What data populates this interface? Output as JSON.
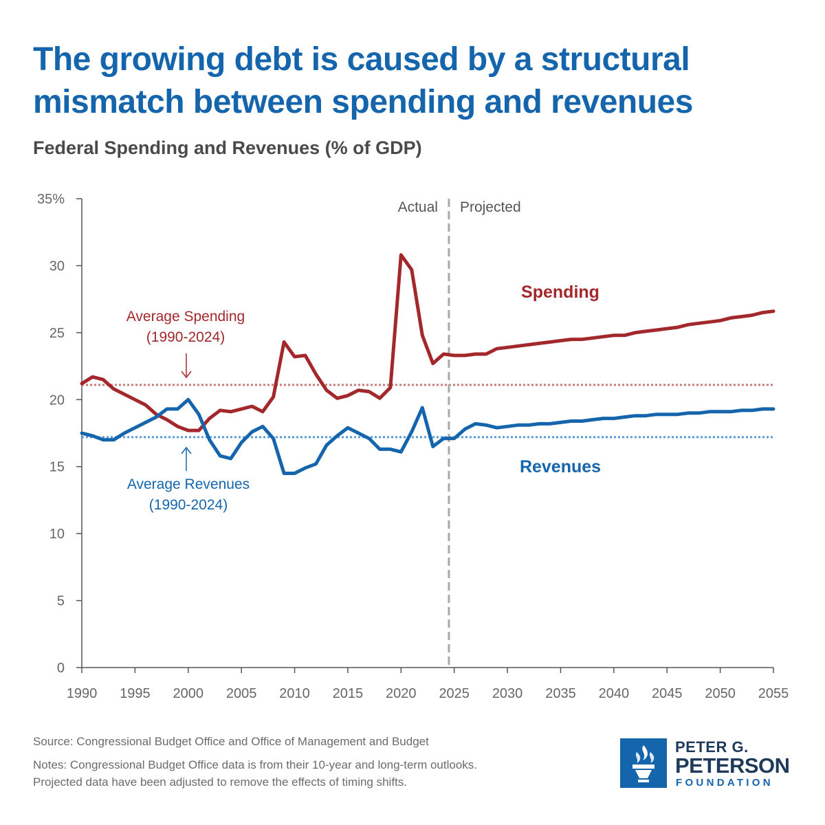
{
  "title": "The growing debt is caused by a structural mismatch between spending and revenues",
  "subtitle": "Federal Spending and Revenues (% of GDP)",
  "chart_data": {
    "type": "line",
    "x_ticks": [
      1990,
      1995,
      2000,
      2005,
      2010,
      2015,
      2020,
      2025,
      2030,
      2035,
      2040,
      2045,
      2050,
      2055
    ],
    "y_ticks": [
      0,
      5,
      10,
      15,
      20,
      25,
      30,
      35
    ],
    "y_tick_labels": [
      "0",
      "5",
      "10",
      "15",
      "20",
      "25",
      "30",
      "35%"
    ],
    "xlim": [
      1990,
      2055
    ],
    "ylim": [
      0,
      35
    ],
    "divider_x": 2024.5,
    "divider_labels": {
      "left": "Actual",
      "right": "Projected"
    },
    "x": [
      1990,
      1991,
      1992,
      1993,
      1994,
      1995,
      1996,
      1997,
      1998,
      1999,
      2000,
      2001,
      2002,
      2003,
      2004,
      2005,
      2006,
      2007,
      2008,
      2009,
      2010,
      2011,
      2012,
      2013,
      2014,
      2015,
      2016,
      2017,
      2018,
      2019,
      2020,
      2021,
      2022,
      2023,
      2024,
      2025,
      2026,
      2027,
      2028,
      2029,
      2030,
      2031,
      2032,
      2033,
      2034,
      2035,
      2036,
      2037,
      2038,
      2039,
      2040,
      2041,
      2042,
      2043,
      2044,
      2045,
      2046,
      2047,
      2048,
      2049,
      2050,
      2051,
      2052,
      2053,
      2054,
      2055
    ],
    "series": [
      {
        "name": "Spending",
        "color": "#a3282b",
        "values": [
          21.2,
          21.7,
          21.5,
          20.8,
          20.4,
          20.0,
          19.6,
          18.9,
          18.5,
          18.0,
          17.7,
          17.7,
          18.6,
          19.2,
          19.1,
          19.3,
          19.5,
          19.1,
          20.2,
          24.3,
          23.2,
          23.3,
          21.9,
          20.7,
          20.1,
          20.3,
          20.7,
          20.6,
          20.1,
          20.9,
          30.8,
          29.7,
          24.8,
          22.7,
          23.4,
          23.3,
          23.3,
          23.4,
          23.4,
          23.8,
          23.9,
          24.0,
          24.1,
          24.2,
          24.3,
          24.4,
          24.5,
          24.5,
          24.6,
          24.7,
          24.8,
          24.8,
          25.0,
          25.1,
          25.2,
          25.3,
          25.4,
          25.6,
          25.7,
          25.8,
          25.9,
          26.1,
          26.2,
          26.3,
          26.5,
          26.6
        ]
      },
      {
        "name": "Revenues",
        "color": "#1565ad",
        "values": [
          17.5,
          17.3,
          17.0,
          17.0,
          17.5,
          17.9,
          18.3,
          18.7,
          19.3,
          19.3,
          20.0,
          18.9,
          17.0,
          15.8,
          15.6,
          16.8,
          17.6,
          18.0,
          17.1,
          14.5,
          14.5,
          14.9,
          15.2,
          16.6,
          17.3,
          17.9,
          17.5,
          17.1,
          16.3,
          16.3,
          16.1,
          17.6,
          19.4,
          16.5,
          17.1,
          17.1,
          17.8,
          18.2,
          18.1,
          17.9,
          18.0,
          18.1,
          18.1,
          18.2,
          18.2,
          18.3,
          18.4,
          18.4,
          18.5,
          18.6,
          18.6,
          18.7,
          18.8,
          18.8,
          18.9,
          18.9,
          18.9,
          19.0,
          19.0,
          19.1,
          19.1,
          19.1,
          19.2,
          19.2,
          19.3,
          19.3
        ]
      }
    ],
    "averages": [
      {
        "label": "Average Spending",
        "period": "(1990-2024)",
        "value": 21.1,
        "color": "#c97b7b"
      },
      {
        "label": "Average Revenues",
        "period": "(1990-2024)",
        "value": 17.2,
        "color": "#5b9bd5"
      }
    ],
    "grid": false
  },
  "footer": {
    "source": "Source: Congressional Budget Office and Office of Management and Budget",
    "notes_line1": "Notes: Congressional Budget Office data is from their 10-year and long-term outlooks.",
    "notes_line2": "Projected data have been adjusted to remove the effects of timing shifts."
  },
  "logo": {
    "line1": "PETER G.",
    "line2": "PETERSON",
    "line3": "FOUNDATION",
    "color": "#1565ad"
  }
}
